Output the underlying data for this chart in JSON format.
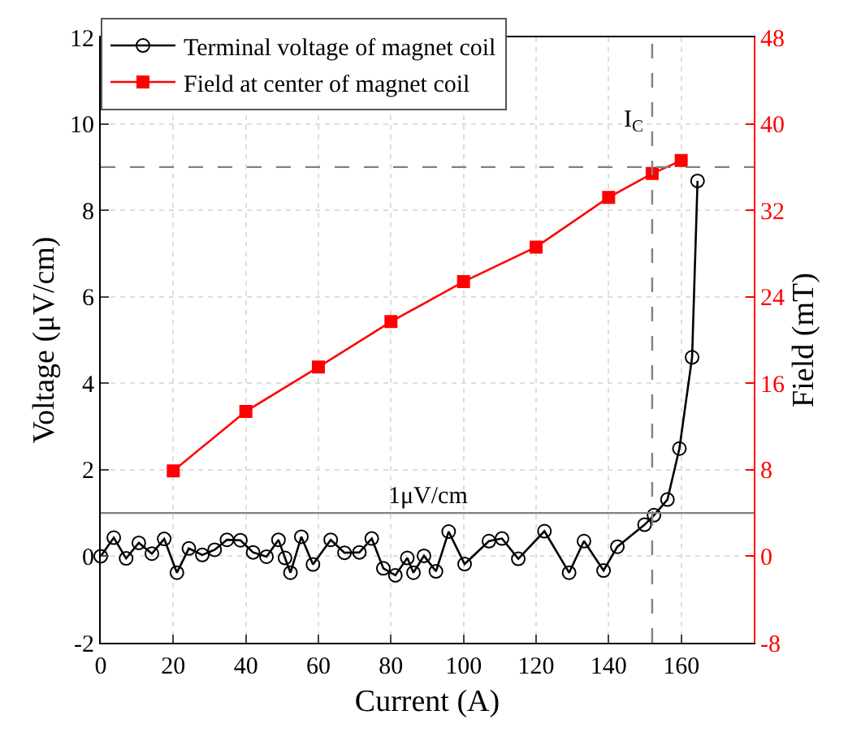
{
  "chart_data": {
    "type": "line",
    "xlabel": "Current (A)",
    "ylabel": "Voltage (μV/cm)",
    "y2label": "Field (mT)",
    "xlim": [
      0,
      180
    ],
    "xticks": [
      0,
      20,
      40,
      60,
      80,
      100,
      120,
      140,
      160
    ],
    "ylim": [
      -2,
      12
    ],
    "yticks": [
      -2,
      0,
      2,
      4,
      6,
      8,
      10,
      12
    ],
    "y2lim": [
      -8,
      48
    ],
    "y2ticks": [
      -8,
      0,
      8,
      16,
      24,
      32,
      40,
      48
    ],
    "grid": true,
    "legend": "top left",
    "series": [
      {
        "name": "Terminal voltage of magnet coil",
        "color": "#000000",
        "marker": "circle",
        "x": [
          0,
          3.6,
          7,
          10.5,
          14.1,
          17.5,
          21,
          24.3,
          28,
          31.4,
          34.8,
          38.5,
          42,
          45.7,
          49,
          50.8,
          52.3,
          55.3,
          58.5,
          63.4,
          67.2,
          71.3,
          74.7,
          77.9,
          81.2,
          84.5,
          86.2,
          89.1,
          92.4,
          95.9,
          100.3,
          107,
          110.6,
          115.1,
          122.3,
          129.1,
          133.2,
          138.6,
          142.4,
          149.9,
          152.5,
          156.2,
          159.5,
          163,
          164.5
        ],
        "values": [
          0.0,
          0.43,
          -0.05,
          0.31,
          0.06,
          0.4,
          -0.38,
          0.18,
          0.03,
          0.15,
          0.38,
          0.37,
          0.09,
          -0.01,
          0.38,
          -0.04,
          -0.38,
          0.45,
          -0.19,
          0.38,
          0.08,
          0.09,
          0.41,
          -0.28,
          -0.44,
          -0.04,
          -0.38,
          0.01,
          -0.35,
          0.57,
          -0.18,
          0.35,
          0.41,
          -0.06,
          0.58,
          -0.38,
          0.35,
          -0.33,
          0.22,
          0.73,
          0.95,
          1.31,
          2.49,
          4.6,
          8.68
        ]
      },
      {
        "name": "Field at center of magnet coil",
        "color": "#ff0000",
        "marker": "square",
        "axis": "y2",
        "x": [
          20,
          40,
          60,
          80,
          100,
          120,
          140,
          152,
          160
        ],
        "values": [
          7.9,
          13.4,
          17.5,
          21.7,
          25.4,
          28.6,
          33.2,
          35.4,
          36.6
        ]
      }
    ],
    "ref_lines": [
      {
        "axis": "x",
        "value": 152,
        "label": "I$_{C}$",
        "color": "#808080",
        "line_style": "dashed"
      },
      {
        "axis": "y",
        "value": 9,
        "color": "#808080",
        "line_style": "dashed"
      },
      {
        "axis": "y",
        "value": 1,
        "label": "1μV/cm",
        "color": "#808080",
        "line_style": "solid"
      }
    ]
  }
}
